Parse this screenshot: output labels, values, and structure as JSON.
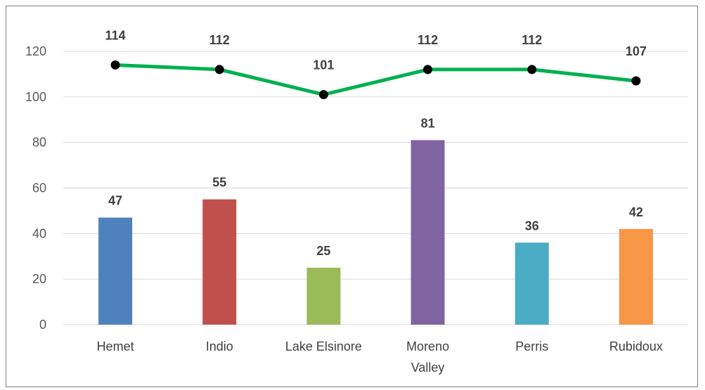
{
  "chart_data": {
    "type": "bar",
    "categories": [
      "Hemet",
      "Indio",
      "Lake Elsinore",
      "Moreno Valley",
      "Perris",
      "Rubidoux"
    ],
    "category_lines": [
      [
        "Hemet"
      ],
      [
        "Indio"
      ],
      [
        "Lake Elsinore"
      ],
      [
        "Moreno",
        "Valley"
      ],
      [
        "Perris"
      ],
      [
        "Rubidoux"
      ]
    ],
    "series": [
      {
        "type": "bar",
        "values": [
          47,
          55,
          25,
          81,
          36,
          42
        ],
        "colors": [
          "#4f81bd",
          "#c0504d",
          "#9bbb59",
          "#8064a2",
          "#4bacc6",
          "#f79646"
        ]
      },
      {
        "type": "line",
        "values": [
          114,
          112,
          101,
          112,
          112,
          107
        ],
        "color": "#00b050",
        "marker_color": "#000000"
      }
    ],
    "yticks": [
      0,
      20,
      40,
      60,
      80,
      100,
      120
    ],
    "ylim": [
      0,
      130
    ],
    "grid": true,
    "data_labels": true,
    "title": "",
    "xlabel": "",
    "ylabel": ""
  }
}
